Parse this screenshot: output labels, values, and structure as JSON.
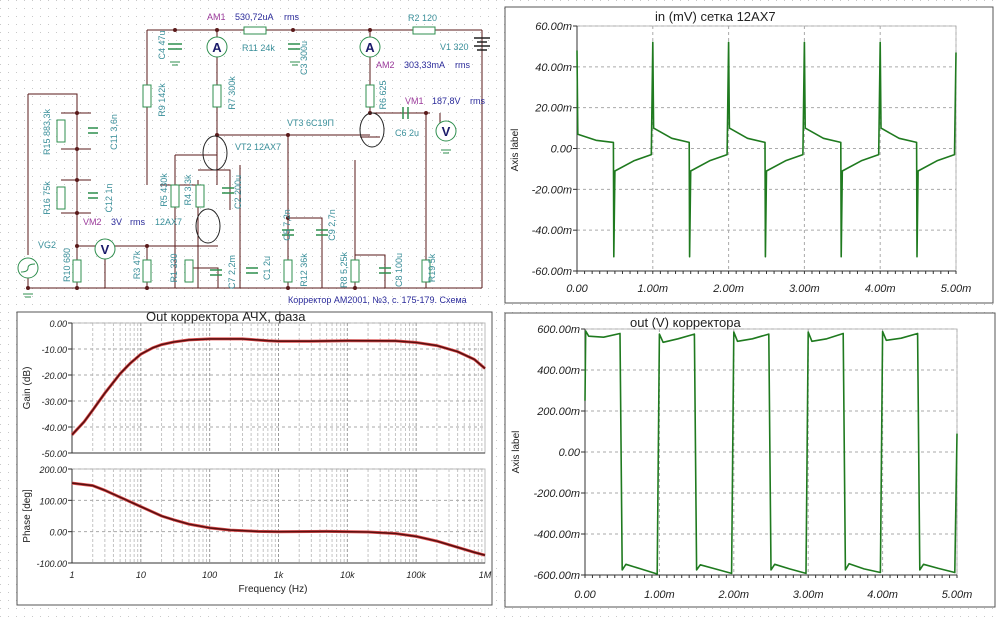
{
  "schematic": {
    "am1": {
      "name": "AM1",
      "value": "530,72uA",
      "mode": "rms"
    },
    "am2": {
      "name": "AM2",
      "value": "303,33mA",
      "mode": "rms"
    },
    "vm1": {
      "name": "VM1",
      "value": "187,8V",
      "mode": "rms"
    },
    "vm2": {
      "name": "VM2",
      "value": "3V",
      "mode": "rms"
    },
    "labels": {
      "r2": "R2 120",
      "v1": "V1 320",
      "r11": "R11 24k",
      "c4": "C4 47u",
      "c3": "C3 300u",
      "r9": "R9 142k",
      "r7": "R7 300k",
      "r6": "R6 625",
      "vt3": "VT3 6C19П",
      "c6": "C6 2u",
      "vt2": "VT2 12AX7",
      "r15": "R15 883,3k",
      "c11": "C11 3,6n",
      "r16": "R16 75k",
      "c12": "C12 1n",
      "r5": "R5 430k",
      "r4": "R4 3,3k",
      "c2": "C2 200u",
      "vt1": "12AX7",
      "vg2": "VG2",
      "r10": "R10 680",
      "r3": "R3 47k",
      "r1": "R1 330",
      "c7": "C7 2,2m",
      "c1": "C1 2u",
      "c5": "C5 7,2n",
      "c9": "C9 2,7n",
      "r12": "R12 36k",
      "r8": "R8 5,25k",
      "c8": "C8 100u",
      "r19": "R19 5k",
      "meter_a": "A",
      "meter_v": "V"
    },
    "caption": "Корректор  АМ2001, №3, с. 175-179. Схема"
  },
  "chart_data": [
    {
      "type": "line",
      "title": "in (mV) сетка 12AX7",
      "xlabel": "",
      "ylabel": "Axis label",
      "xlim": [
        0,
        5
      ],
      "ylim": [
        -60,
        60
      ],
      "grid": true,
      "color": "#1f7a1f",
      "xticks": [
        0,
        1,
        2,
        3,
        4,
        5
      ],
      "xtick_labels": [
        "0.00",
        "1.00m",
        "2.00m",
        "3.00m",
        "4.00m",
        "5.00m"
      ],
      "yticks": [
        60,
        40,
        20,
        0,
        -20,
        -40,
        -60
      ],
      "ytick_labels": [
        "60.00m",
        "40.00m",
        "20.00m",
        "0.00",
        "-20.00m",
        "-40.00m",
        "-60.00m"
      ],
      "series": [
        {
          "points": [
            [
              0,
              48
            ],
            [
              0.01,
              7
            ],
            [
              0.25,
              4
            ],
            [
              0.48,
              3
            ],
            [
              0.485,
              -53
            ],
            [
              0.5,
              -11
            ],
            [
              0.75,
              -6
            ],
            [
              0.98,
              -3
            ],
            [
              1.0,
              52
            ],
            [
              1.01,
              10
            ],
            [
              1.25,
              5
            ],
            [
              1.48,
              3
            ],
            [
              1.485,
              -53
            ],
            [
              1.5,
              -11
            ],
            [
              1.75,
              -6
            ],
            [
              1.98,
              -3
            ],
            [
              2.0,
              52
            ],
            [
              2.01,
              10
            ],
            [
              2.25,
              5
            ],
            [
              2.48,
              3
            ],
            [
              2.485,
              -53
            ],
            [
              2.5,
              -11
            ],
            [
              2.75,
              -6
            ],
            [
              2.98,
              -3
            ],
            [
              3.0,
              52
            ],
            [
              3.01,
              10
            ],
            [
              3.25,
              5
            ],
            [
              3.48,
              3
            ],
            [
              3.485,
              -53
            ],
            [
              3.5,
              -11
            ],
            [
              3.75,
              -6
            ],
            [
              3.98,
              -3
            ],
            [
              4.0,
              52
            ],
            [
              4.01,
              10
            ],
            [
              4.25,
              5
            ],
            [
              4.48,
              3
            ],
            [
              4.485,
              -53
            ],
            [
              4.5,
              -11
            ],
            [
              4.75,
              -6
            ],
            [
              4.98,
              -3
            ],
            [
              5.0,
              47
            ]
          ]
        }
      ]
    },
    {
      "type": "line",
      "title": "Out корректора АЧХ, фаза",
      "xlabel": "Frequency (Hz)",
      "xscale": "log",
      "xlim": [
        1,
        1000000
      ],
      "grid": true,
      "color": "#5a1010",
      "xticks": [
        1,
        10,
        100,
        1000,
        10000,
        100000,
        1000000
      ],
      "xtick_labels": [
        "1",
        "10",
        "100",
        "1k",
        "10k",
        "100k",
        "1M"
      ],
      "panels": [
        {
          "ylabel": "Gain (dB)",
          "ylim": [
            -50,
            0
          ],
          "yticks": [
            0,
            -10,
            -20,
            -30,
            -40,
            -50
          ],
          "ytick_labels": [
            "0.00",
            "-10.00",
            "-20.00",
            "-30.00",
            "-40.00",
            "-50.00"
          ],
          "points": [
            [
              1,
              -43
            ],
            [
              1.5,
              -38
            ],
            [
              2,
              -33.5
            ],
            [
              3,
              -27
            ],
            [
              5,
              -19.5
            ],
            [
              7,
              -15.5
            ],
            [
              10,
              -12
            ],
            [
              15,
              -9.5
            ],
            [
              20,
              -8.3
            ],
            [
              30,
              -7.3
            ],
            [
              50,
              -6.5
            ],
            [
              100,
              -6.1
            ],
            [
              300,
              -6.1
            ],
            [
              700,
              -6.8
            ],
            [
              1000,
              -7
            ],
            [
              3000,
              -7
            ],
            [
              10000,
              -6.8
            ],
            [
              50000,
              -6.9
            ],
            [
              100000,
              -7.5
            ],
            [
              200000,
              -8.7
            ],
            [
              400000,
              -11
            ],
            [
              700000,
              -14
            ],
            [
              1000000,
              -17.5
            ]
          ]
        },
        {
          "ylabel": "Phase [deg]",
          "ylim": [
            -100,
            200
          ],
          "yticks": [
            200,
            100,
            0,
            -100
          ],
          "ytick_labels": [
            "200.00",
            "100.00",
            "0.00",
            "-100.00"
          ],
          "points": [
            [
              1,
              155
            ],
            [
              2,
              147
            ],
            [
              3,
              132
            ],
            [
              5,
              110
            ],
            [
              10,
              80
            ],
            [
              20,
              50
            ],
            [
              30,
              38
            ],
            [
              50,
              24
            ],
            [
              100,
              12
            ],
            [
              200,
              5
            ],
            [
              500,
              1
            ],
            [
              1000,
              0
            ],
            [
              5000,
              1
            ],
            [
              20000,
              -1
            ],
            [
              50000,
              -6
            ],
            [
              100000,
              -15
            ],
            [
              200000,
              -30
            ],
            [
              400000,
              -50
            ],
            [
              700000,
              -66
            ],
            [
              1000000,
              -75
            ]
          ]
        }
      ]
    },
    {
      "type": "line",
      "title": "out (V) корректора",
      "xlabel": "",
      "ylabel": "Axis label",
      "xlim": [
        0,
        5
      ],
      "ylim": [
        -600,
        600
      ],
      "grid": true,
      "color": "#1f7a1f",
      "xticks": [
        0,
        1,
        2,
        3,
        4,
        5
      ],
      "xtick_labels": [
        "0.00",
        "1.00m",
        "2.00m",
        "3.00m",
        "4.00m",
        "5.00m"
      ],
      "yticks": [
        600,
        400,
        200,
        0,
        -200,
        -400,
        -600
      ],
      "ytick_labels": [
        "600.00m",
        "400.00m",
        "200.00m",
        "0.00",
        "-200.00m",
        "-400.00m",
        "-600.00m"
      ],
      "series": [
        {
          "points": [
            [
              0,
              250
            ],
            [
              0.01,
              590
            ],
            [
              0.05,
              565
            ],
            [
              0.25,
              560
            ],
            [
              0.47,
              578
            ],
            [
              0.5,
              -575
            ],
            [
              0.55,
              -548
            ],
            [
              0.75,
              -570
            ],
            [
              0.97,
              -595
            ],
            [
              1.0,
              575
            ],
            [
              1.05,
              535
            ],
            [
              1.25,
              552
            ],
            [
              1.47,
              575
            ],
            [
              1.5,
              -575
            ],
            [
              1.55,
              -550
            ],
            [
              1.75,
              -570
            ],
            [
              1.97,
              -592
            ],
            [
              2.0,
              585
            ],
            [
              2.05,
              540
            ],
            [
              2.25,
              552
            ],
            [
              2.47,
              575
            ],
            [
              2.5,
              -575
            ],
            [
              2.55,
              -548
            ],
            [
              2.75,
              -570
            ],
            [
              2.97,
              -592
            ],
            [
              3.0,
              585
            ],
            [
              3.05,
              540
            ],
            [
              3.25,
              552
            ],
            [
              3.47,
              578
            ],
            [
              3.5,
              -575
            ],
            [
              3.55,
              -545
            ],
            [
              3.75,
              -570
            ],
            [
              3.97,
              -588
            ],
            [
              4.0,
              588
            ],
            [
              4.05,
              545
            ],
            [
              4.25,
              555
            ],
            [
              4.47,
              578
            ],
            [
              4.5,
              -575
            ],
            [
              4.55,
              -548
            ],
            [
              4.75,
              -568
            ],
            [
              4.97,
              -588
            ],
            [
              5.0,
              90
            ]
          ]
        }
      ]
    }
  ]
}
